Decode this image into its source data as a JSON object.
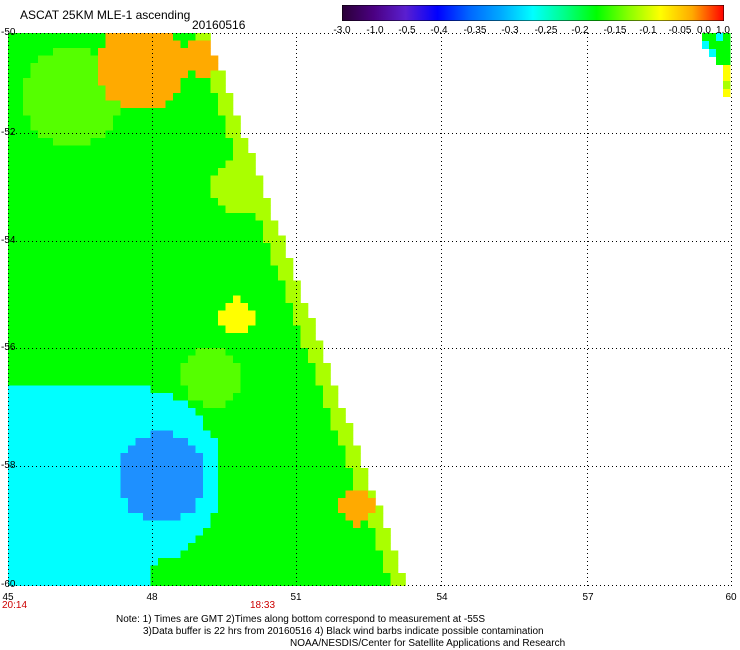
{
  "header": {
    "title": "ASCAT 25KM MLE-1 ascending",
    "date": "20160516"
  },
  "colorbar": {
    "tick_labels": [
      "-3.0",
      "-1.0",
      "-0.5",
      "-0.4",
      "-0.35",
      "-0.3",
      "-0.25",
      "-0.2",
      "-0.15",
      "-0.1",
      "-0.05",
      "0.0",
      "1.0"
    ],
    "colors": [
      "#2a0036",
      "#4b0082",
      "#5a1fd0",
      "#0000ff",
      "#0066ff",
      "#00aaff",
      "#00ffff",
      "#00ff88",
      "#00ff00",
      "#88ff00",
      "#ffff00",
      "#ffaa00",
      "#ff0000"
    ]
  },
  "axes": {
    "lat_labels": [
      "-50",
      "-52",
      "-54",
      "-56",
      "-58",
      "-60"
    ],
    "lon_labels": [
      "45",
      "48",
      "51",
      "54",
      "57",
      "60"
    ]
  },
  "time_labels": [
    "20:14",
    "18:33"
  ],
  "notes": {
    "line1": "Note: 1) Times are GMT 2)Times along bottom correspond to measurement at -55S",
    "line2": "3)Data buffer is 22 hrs from 20160516 4) Black wind barbs indicate possible contamination",
    "line3": "NOAA/NESDIS/Center for Satellite Applications and Research"
  },
  "swath_colors": {
    "cyan": "#00ffff",
    "light_cyan": "#44ffdd",
    "blue": "#00aaff",
    "deep_blue": "#1e90ff",
    "green": "#00ff00",
    "light_green": "#55ff00",
    "yellow_green": "#aaff00",
    "yellow": "#ffff00",
    "orange": "#ffaa00",
    "orange_red": "#ff7700"
  }
}
